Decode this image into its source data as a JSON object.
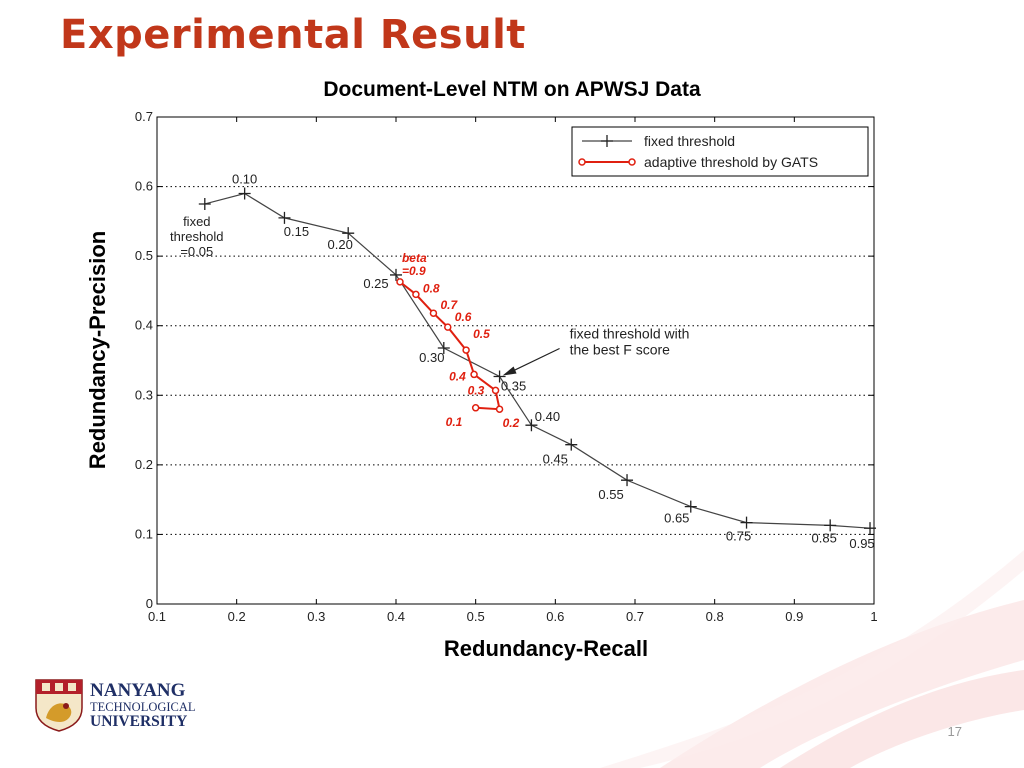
{
  "slide": {
    "title": "Experimental Result",
    "page_number": "17",
    "logo_lines": [
      "NANYANG",
      "TECHNOLOGICAL",
      "UNIVERSITY"
    ]
  },
  "colors": {
    "title": "#c1371a",
    "fixed": "#444444",
    "adaptive": "#e02010",
    "grid": "#000000"
  },
  "chart_data": {
    "type": "line",
    "title": "Document-Level NTM on APWSJ Data",
    "xlabel": "Redundancy-Recall",
    "ylabel": "Redundancy-Precision",
    "xlim": [
      0.1,
      1
    ],
    "ylim": [
      0,
      0.7
    ],
    "xticks": [
      "0.1",
      "0.2",
      "0.3",
      "0.4",
      "0.5",
      "0.6",
      "0.7",
      "0.8",
      "0.9",
      "1"
    ],
    "yticks": [
      "0",
      "0.1",
      "0.2",
      "0.3",
      "0.4",
      "0.5",
      "0.6",
      "0.7"
    ],
    "grid": "horizontal dotted",
    "legend_position": "top-right",
    "series": [
      {
        "name": "fixed threshold",
        "marker": "plus",
        "points": [
          {
            "x": 0.16,
            "y": 0.575,
            "label": ""
          },
          {
            "x": 0.21,
            "y": 0.59,
            "label": "0.10"
          },
          {
            "x": 0.26,
            "y": 0.555,
            "label": "0.15"
          },
          {
            "x": 0.34,
            "y": 0.533,
            "label": "0.20"
          },
          {
            "x": 0.4,
            "y": 0.473,
            "label": "0.25"
          },
          {
            "x": 0.46,
            "y": 0.368,
            "label": "0.30"
          },
          {
            "x": 0.53,
            "y": 0.327,
            "label": "0.35"
          },
          {
            "x": 0.57,
            "y": 0.257,
            "label": "0.40"
          },
          {
            "x": 0.62,
            "y": 0.229,
            "label": "0.45"
          },
          {
            "x": 0.69,
            "y": 0.178,
            "label": "0.55"
          },
          {
            "x": 0.77,
            "y": 0.14,
            "label": "0.65"
          },
          {
            "x": 0.84,
            "y": 0.117,
            "label": "0.75"
          },
          {
            "x": 0.945,
            "y": 0.113,
            "label": "0.85"
          },
          {
            "x": 0.995,
            "y": 0.109,
            "label": "0.95"
          }
        ]
      },
      {
        "name": "adaptive threshold by GATS",
        "marker": "circle",
        "points": [
          {
            "x": 0.405,
            "y": 0.463,
            "label": ""
          },
          {
            "x": 0.425,
            "y": 0.445,
            "label": "0.8"
          },
          {
            "x": 0.447,
            "y": 0.418,
            "label": "0.7"
          },
          {
            "x": 0.465,
            "y": 0.398,
            "label": "0.6"
          },
          {
            "x": 0.488,
            "y": 0.365,
            "label": "0.5"
          },
          {
            "x": 0.498,
            "y": 0.33,
            "label": "0.4"
          },
          {
            "x": 0.525,
            "y": 0.307,
            "label": "0.3"
          },
          {
            "x": 0.53,
            "y": 0.28,
            "label": "0.2"
          },
          {
            "x": 0.5,
            "y": 0.282,
            "label": "0.1"
          }
        ]
      }
    ],
    "annotations": [
      {
        "id": "fixed-start",
        "text": [
          "fixed",
          "threshold",
          "=0.05"
        ]
      },
      {
        "id": "beta-start",
        "text": [
          "beta",
          "=0.9"
        ]
      },
      {
        "id": "best-f",
        "text": [
          "fixed threshold with",
          "the best F score"
        ]
      }
    ]
  }
}
